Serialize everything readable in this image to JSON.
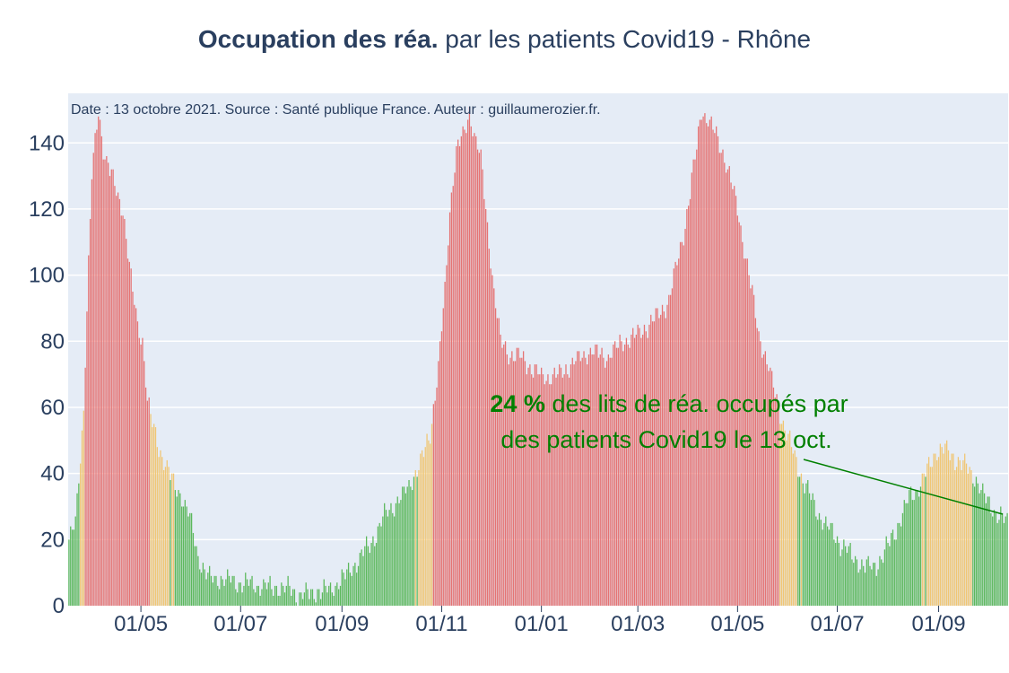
{
  "title_bold": "Occupation des réa.",
  "title_rest": " par les patients Covid19 - Rhône",
  "source_note": "Date : 13 octobre 2021. Source : Santé publique France. Auteur : guillaumerozier.fr.",
  "annotation": {
    "pct": "24",
    "pct_unit": " %",
    "line1_rest": " des lits de réa. occupés par",
    "line2": "des patients Covid19 le 13 oct.",
    "color": "#008000"
  },
  "colors": {
    "plot_bg": "#e5ecf6",
    "grid": "#ffffff",
    "green": "#5cb85c",
    "orange": "#f0c674",
    "red": "#e57373"
  },
  "chart_data": {
    "type": "bar",
    "x_range": [
      "2020-03-18",
      "2021-10-13"
    ],
    "ylim": [
      0,
      155
    ],
    "y_ticks": [
      0,
      20,
      40,
      60,
      80,
      100,
      120,
      140
    ],
    "x_ticks": [
      {
        "date": "2020-05-01",
        "label": "01/05"
      },
      {
        "date": "2020-07-01",
        "label": "01/07"
      },
      {
        "date": "2020-09-01",
        "label": "01/09"
      },
      {
        "date": "2020-11-01",
        "label": "01/11"
      },
      {
        "date": "2021-01-01",
        "label": "01/01"
      },
      {
        "date": "2021-03-01",
        "label": "01/03"
      },
      {
        "date": "2021-05-01",
        "label": "01/05"
      },
      {
        "date": "2021-07-01",
        "label": "01/07"
      },
      {
        "date": "2021-09-01",
        "label": "01/09"
      }
    ],
    "color_rule": "green below 40 %, orange 40-60 %, red above 60 % of réa beds",
    "keypoints": [
      [
        "2020-03-18",
        20
      ],
      [
        "2020-03-22",
        25
      ],
      [
        "2020-03-25",
        45
      ],
      [
        "2020-03-27",
        60
      ],
      [
        "2020-03-29",
        90
      ],
      [
        "2020-04-01",
        130
      ],
      [
        "2020-04-05",
        150
      ],
      [
        "2020-04-08",
        138
      ],
      [
        "2020-04-13",
        130
      ],
      [
        "2020-04-20",
        120
      ],
      [
        "2020-04-25",
        98
      ],
      [
        "2020-04-29",
        85
      ],
      [
        "2020-05-02",
        80
      ],
      [
        "2020-05-05",
        62
      ],
      [
        "2020-05-08",
        55
      ],
      [
        "2020-05-12",
        48
      ],
      [
        "2020-05-16",
        43
      ],
      [
        "2020-05-20",
        38
      ],
      [
        "2020-05-25",
        34
      ],
      [
        "2020-06-01",
        25
      ],
      [
        "2020-06-05",
        15
      ],
      [
        "2020-06-10",
        9
      ],
      [
        "2020-06-20",
        8
      ],
      [
        "2020-07-01",
        7
      ],
      [
        "2020-07-15",
        6
      ],
      [
        "2020-08-01",
        5
      ],
      [
        "2020-08-05",
        3
      ],
      [
        "2020-08-15",
        4
      ],
      [
        "2020-08-25",
        5
      ],
      [
        "2020-09-01",
        8
      ],
      [
        "2020-09-10",
        13
      ],
      [
        "2020-09-20",
        20
      ],
      [
        "2020-09-28",
        28
      ],
      [
        "2020-10-08",
        33
      ],
      [
        "2020-10-18",
        42
      ],
      [
        "2020-10-25",
        52
      ],
      [
        "2020-10-30",
        72
      ],
      [
        "2020-11-03",
        95
      ],
      [
        "2020-11-06",
        120
      ],
      [
        "2020-11-10",
        138
      ],
      [
        "2020-11-15",
        143
      ],
      [
        "2020-11-18",
        150
      ],
      [
        "2020-11-21",
        142
      ],
      [
        "2020-11-25",
        135
      ],
      [
        "2020-11-30",
        110
      ],
      [
        "2020-12-03",
        95
      ],
      [
        "2020-12-07",
        80
      ],
      [
        "2020-12-12",
        76
      ],
      [
        "2020-12-20",
        75
      ],
      [
        "2021-01-01",
        69
      ],
      [
        "2021-01-12",
        70
      ],
      [
        "2021-01-22",
        74
      ],
      [
        "2021-02-01",
        77
      ],
      [
        "2021-02-10",
        75
      ],
      [
        "2021-02-20",
        80
      ],
      [
        "2021-03-01",
        82
      ],
      [
        "2021-03-10",
        86
      ],
      [
        "2021-03-20",
        92
      ],
      [
        "2021-03-30",
        115
      ],
      [
        "2021-04-05",
        135
      ],
      [
        "2021-04-09",
        150
      ],
      [
        "2021-04-14",
        146
      ],
      [
        "2021-04-20",
        140
      ],
      [
        "2021-04-25",
        132
      ],
      [
        "2021-05-01",
        120
      ],
      [
        "2021-05-08",
        100
      ],
      [
        "2021-05-14",
        82
      ],
      [
        "2021-05-20",
        72
      ],
      [
        "2021-05-27",
        58
      ],
      [
        "2021-06-05",
        45
      ],
      [
        "2021-06-10",
        38
      ],
      [
        "2021-06-20",
        27
      ],
      [
        "2021-07-01",
        20
      ],
      [
        "2021-07-10",
        15
      ],
      [
        "2021-07-18",
        12
      ],
      [
        "2021-07-25",
        12
      ],
      [
        "2021-08-01",
        18
      ],
      [
        "2021-08-08",
        25
      ],
      [
        "2021-08-14",
        33
      ],
      [
        "2021-08-20",
        36
      ],
      [
        "2021-08-26",
        42
      ],
      [
        "2021-08-31",
        47
      ],
      [
        "2021-09-06",
        47
      ],
      [
        "2021-09-12",
        44
      ],
      [
        "2021-09-18",
        42
      ],
      [
        "2021-09-24",
        38
      ],
      [
        "2021-09-30",
        32
      ],
      [
        "2021-10-06",
        28
      ],
      [
        "2021-10-13",
        25
      ]
    ]
  }
}
